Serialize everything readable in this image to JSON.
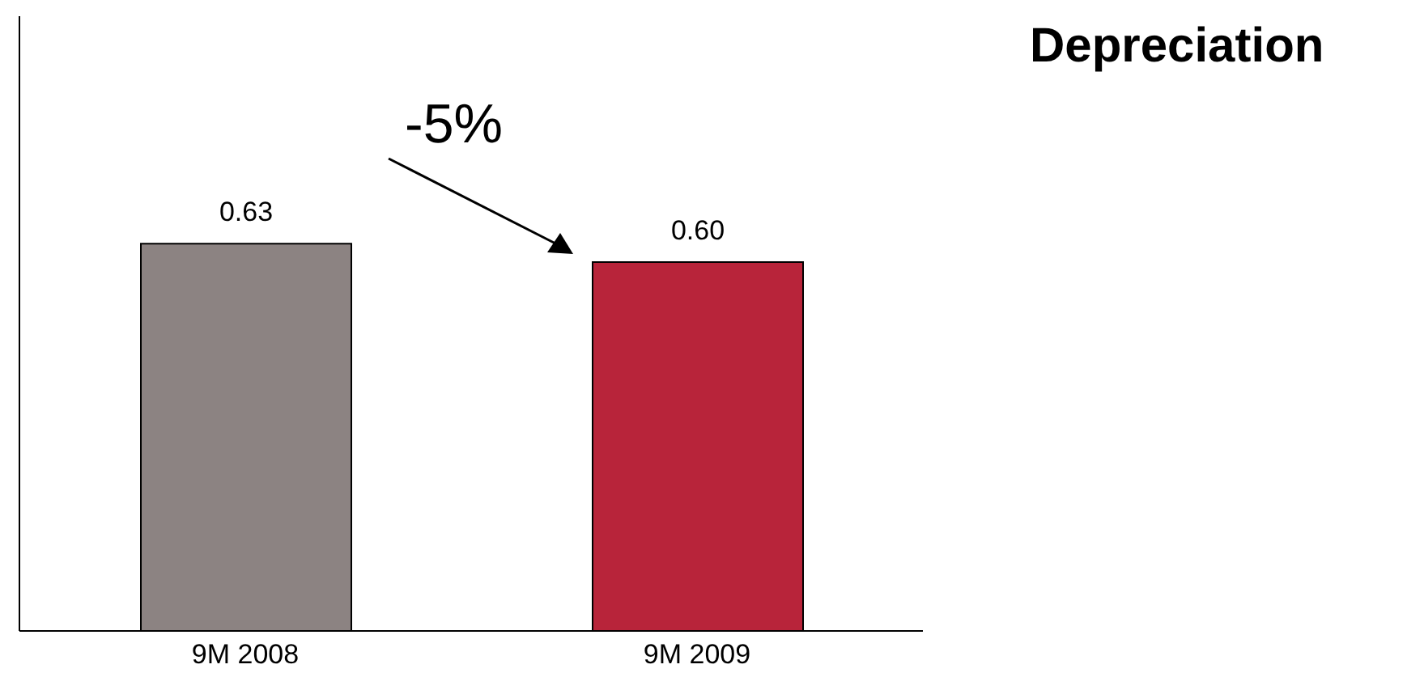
{
  "chart_data": {
    "type": "bar",
    "title": "Depreciation",
    "categories": [
      "9M 2008",
      "9M 2009"
    ],
    "values": [
      0.63,
      0.6
    ],
    "value_labels": [
      "0.63",
      "0.60"
    ],
    "colors": [
      "#8c8382",
      "#b8243a"
    ],
    "ylim": [
      0,
      1
    ],
    "tick_labels": "x",
    "grid": false,
    "annotations": [
      "-5%"
    ]
  }
}
